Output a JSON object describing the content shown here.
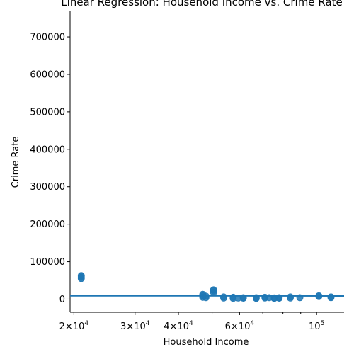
{
  "chart_data": {
    "type": "scatter",
    "title": "Linear Regression: Household Income vs. Crime Rate",
    "xlabel": "Household Income",
    "ylabel": "Crime Rate",
    "x_scale": "log",
    "xlim": [
      19500,
      120000
    ],
    "ylim": [
      -35000,
      770000
    ],
    "grid": false,
    "legend": "none",
    "x_ticks": [
      {
        "value": 20000,
        "base": "2",
        "exp": "4"
      },
      {
        "value": 30000,
        "base": "3",
        "exp": "4"
      },
      {
        "value": 40000,
        "base": "4",
        "exp": "4"
      },
      {
        "value": 60000,
        "base": "6",
        "exp": "4"
      },
      {
        "value": 100000,
        "base": "10",
        "exp": "5"
      }
    ],
    "y_ticks": [
      "0",
      "100000",
      "200000",
      "300000",
      "400000",
      "500000",
      "600000",
      "700000"
    ],
    "colors": {
      "points": "#1f77b4",
      "line": "#1f77b4"
    },
    "points": [
      {
        "x": 21000,
        "y": 55000
      },
      {
        "x": 21000,
        "y": 58000
      },
      {
        "x": 21000,
        "y": 61000
      },
      {
        "x": 21000,
        "y": 63000
      },
      {
        "x": 47000,
        "y": 5000
      },
      {
        "x": 47000,
        "y": 9000
      },
      {
        "x": 47000,
        "y": 13000
      },
      {
        "x": 48000,
        "y": 4000
      },
      {
        "x": 48000,
        "y": 8000
      },
      {
        "x": 50500,
        "y": 18000
      },
      {
        "x": 50500,
        "y": 22000
      },
      {
        "x": 50500,
        "y": 25000
      },
      {
        "x": 54000,
        "y": 3000
      },
      {
        "x": 54000,
        "y": 6000
      },
      {
        "x": 57500,
        "y": 2000
      },
      {
        "x": 57500,
        "y": 5000
      },
      {
        "x": 59500,
        "y": 3000
      },
      {
        "x": 61500,
        "y": 2500
      },
      {
        "x": 61500,
        "y": 4000
      },
      {
        "x": 67000,
        "y": 2000
      },
      {
        "x": 67000,
        "y": 4000
      },
      {
        "x": 71000,
        "y": 3000
      },
      {
        "x": 71000,
        "y": 5000
      },
      {
        "x": 73000,
        "y": 4000
      },
      {
        "x": 75500,
        "y": 2000
      },
      {
        "x": 75500,
        "y": 3500
      },
      {
        "x": 78000,
        "y": 2500
      },
      {
        "x": 78000,
        "y": 4000
      },
      {
        "x": 84000,
        "y": 3000
      },
      {
        "x": 84000,
        "y": 6000
      },
      {
        "x": 89500,
        "y": 4000
      },
      {
        "x": 101500,
        "y": 7000
      },
      {
        "x": 101500,
        "y": 9000
      },
      {
        "x": 110000,
        "y": 4000
      },
      {
        "x": 110000,
        "y": 6000
      }
    ],
    "regression_line": {
      "x": [
        19500,
        120000
      ],
      "y": [
        9500,
        9000
      ]
    }
  }
}
